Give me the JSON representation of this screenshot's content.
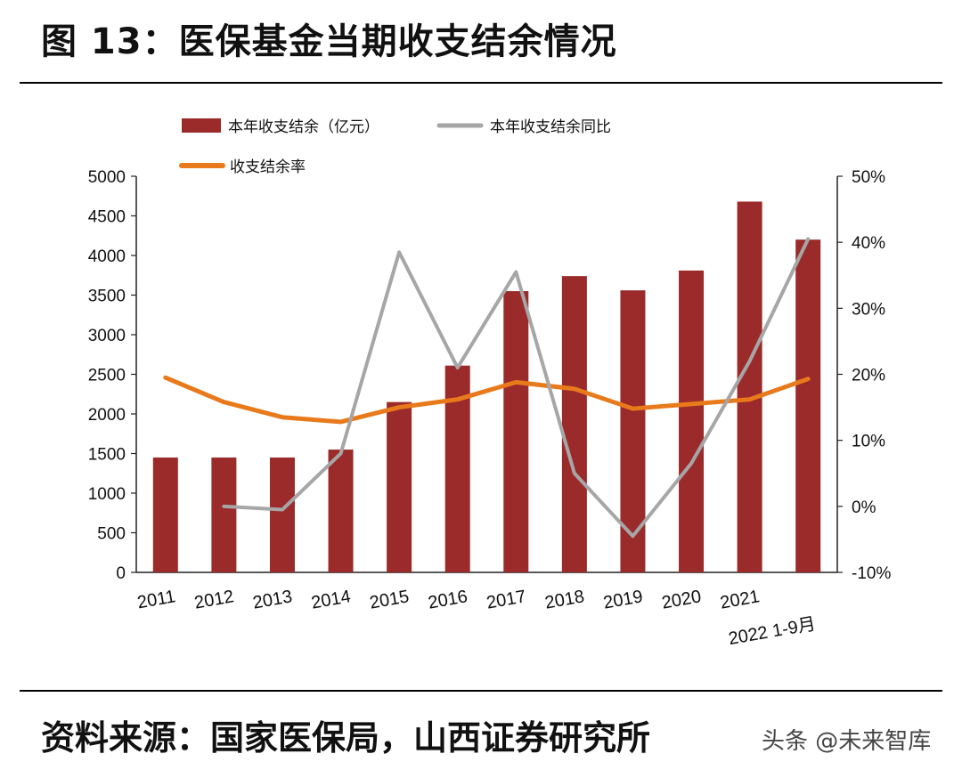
{
  "title": "图 13：医保基金当期收支结余情况",
  "source": "资料来源：国家医保局，山西证券研究所",
  "watermark": "头条 @未来智库",
  "colors": {
    "bar": "#9b2a2a",
    "yoy": "#a6a6a6",
    "rate": "#e87a1c"
  },
  "chart_data": {
    "type": "bar",
    "categories": [
      "2011",
      "2012",
      "2013",
      "2014",
      "2015",
      "2016",
      "2017",
      "2018",
      "2019",
      "2020",
      "2021",
      "2022 1-9月"
    ],
    "series": [
      {
        "name": "本年收支结余（亿元）",
        "type": "bar",
        "axis": "left",
        "values": [
          1450,
          1450,
          1450,
          1550,
          2150,
          2610,
          3550,
          3740,
          3560,
          3810,
          4680,
          4200
        ]
      },
      {
        "name": "本年收支结余同比",
        "type": "line",
        "axis": "right",
        "unit": "%",
        "values": [
          null,
          0.0,
          -0.5,
          8.0,
          38.5,
          21.0,
          35.5,
          5.0,
          -4.5,
          6.5,
          22.0,
          40.5
        ]
      },
      {
        "name": "收支结余率",
        "type": "line",
        "axis": "right",
        "unit": "%",
        "values": [
          19.5,
          15.8,
          13.5,
          12.8,
          15.0,
          16.2,
          18.8,
          17.8,
          14.8,
          15.5,
          16.2,
          19.3
        ]
      }
    ],
    "y_left": {
      "min": 0,
      "max": 5000,
      "ticks": [
        "0",
        "500",
        "1000",
        "1500",
        "2000",
        "2500",
        "3000",
        "3500",
        "4000",
        "4500",
        "5000"
      ]
    },
    "y_right": {
      "min": -10,
      "max": 50,
      "ticks": [
        "-10%",
        "0%",
        "10%",
        "20%",
        "30%",
        "40%",
        "50%"
      ]
    },
    "legend": [
      "本年收支结余（亿元）",
      "本年收支结余同比",
      "收支结余率"
    ]
  }
}
